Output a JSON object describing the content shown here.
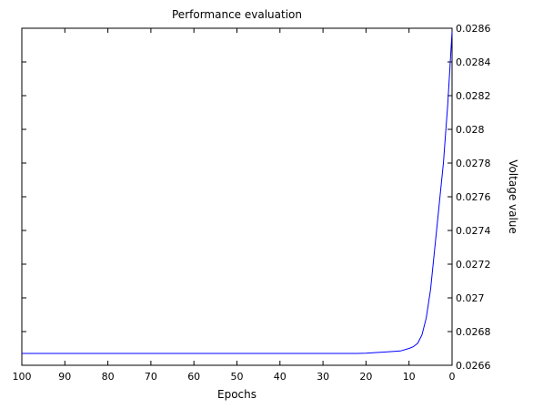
{
  "chart_data": {
    "type": "line",
    "title": "Performance evaluation",
    "xlabel": "Epochs",
    "ylabel": "Voltage value",
    "xlim": [
      0,
      100
    ],
    "ylim": [
      0.0266,
      0.0286
    ],
    "x_ticks": [
      0,
      10,
      20,
      30,
      40,
      50,
      60,
      70,
      80,
      90,
      100
    ],
    "x_tick_labels": [
      "0",
      "10",
      "20",
      "30",
      "40",
      "50",
      "60",
      "70",
      "80",
      "90",
      "100"
    ],
    "y_ticks": [
      0.0266,
      0.0268,
      0.027,
      0.0272,
      0.0274,
      0.0276,
      0.0278,
      0.028,
      0.0282,
      0.0284,
      0.0286
    ],
    "y_tick_labels": [
      "0.0266",
      "0.0268",
      "0.027",
      "0.0272",
      "0.0274",
      "0.0276",
      "0.0278",
      "0.028",
      "0.0282",
      "0.0284",
      "0.0286"
    ],
    "mirrored": true,
    "grid": false,
    "series": [
      {
        "color": "#0000ff",
        "x": [
          0,
          1,
          2,
          3,
          4,
          5,
          6,
          7,
          8,
          9,
          10,
          12,
          15,
          18,
          20,
          22,
          25,
          30,
          40,
          50,
          60,
          70,
          80,
          90,
          100
        ],
        "y": [
          0.02858,
          0.02815,
          0.0278,
          0.02755,
          0.0273,
          0.02705,
          0.02688,
          0.02678,
          0.02673,
          0.02671,
          0.0267,
          0.026685,
          0.02668,
          0.026675,
          0.026672,
          0.02667,
          0.02667,
          0.02667,
          0.02667,
          0.02667,
          0.02667,
          0.02667,
          0.02667,
          0.02667,
          0.02667
        ]
      }
    ]
  }
}
